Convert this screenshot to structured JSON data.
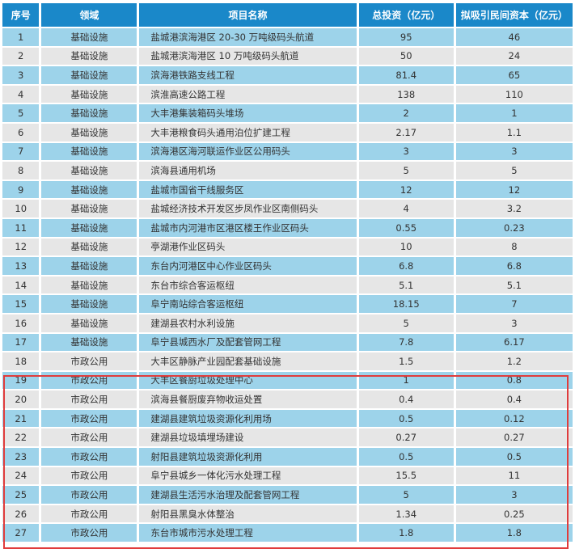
{
  "headers": [
    "序号",
    "领域",
    "项目名称",
    "总投资（亿元）",
    "拟吸引民间资本（亿元）"
  ],
  "rows": [
    {
      "no": "1",
      "field": "基础设施",
      "name": "盐城港滨海港区 20-30 万吨级码头航道",
      "total": "95",
      "private": "46"
    },
    {
      "no": "2",
      "field": "基础设施",
      "name": "盐城港滨海港区 10 万吨级码头航道",
      "total": "50",
      "private": "24"
    },
    {
      "no": "3",
      "field": "基础设施",
      "name": "滨海港铁路支线工程",
      "total": "81.4",
      "private": "65"
    },
    {
      "no": "4",
      "field": "基础设施",
      "name": "滨淮高速公路工程",
      "total": "138",
      "private": "110"
    },
    {
      "no": "5",
      "field": "基础设施",
      "name": "大丰港集装箱码头堆场",
      "total": "2",
      "private": "1"
    },
    {
      "no": "6",
      "field": "基础设施",
      "name": "大丰港粮食码头通用泊位扩建工程",
      "total": "2.17",
      "private": "1.1"
    },
    {
      "no": "7",
      "field": "基础设施",
      "name": "滨海港区海河联运作业区公用码头",
      "total": "3",
      "private": "3"
    },
    {
      "no": "8",
      "field": "基础设施",
      "name": "滨海县通用机场",
      "total": "5",
      "private": "5"
    },
    {
      "no": "9",
      "field": "基础设施",
      "name": "盐城市国省干线服务区",
      "total": "12",
      "private": "12"
    },
    {
      "no": "10",
      "field": "基础设施",
      "name": "盐城经济技术开发区步凤作业区南侧码头",
      "total": "4",
      "private": "3.2"
    },
    {
      "no": "11",
      "field": "基础设施",
      "name": "盐城市内河港市区港区楼王作业区码头",
      "total": "0.55",
      "private": "0.23"
    },
    {
      "no": "12",
      "field": "基础设施",
      "name": "亭湖港作业区码头",
      "total": "10",
      "private": "8"
    },
    {
      "no": "13",
      "field": "基础设施",
      "name": "东台内河港区中心作业区码头",
      "total": "6.8",
      "private": "6.8"
    },
    {
      "no": "14",
      "field": "基础设施",
      "name": "东台市综合客运枢纽",
      "total": "5.1",
      "private": "5.1"
    },
    {
      "no": "15",
      "field": "基础设施",
      "name": "阜宁南站综合客运枢纽",
      "total": "18.15",
      "private": "7"
    },
    {
      "no": "16",
      "field": "基础设施",
      "name": "建湖县农村水利设施",
      "total": "5",
      "private": "3"
    },
    {
      "no": "17",
      "field": "基础设施",
      "name": "阜宁县城西水厂及配套管网工程",
      "total": "7.8",
      "private": "6.17"
    },
    {
      "no": "18",
      "field": "市政公用",
      "name": "大丰区静脉产业园配套基础设施",
      "total": "1.5",
      "private": "1.2"
    },
    {
      "no": "19",
      "field": "市政公用",
      "name": "大丰区餐厨垃圾处理中心",
      "total": "1",
      "private": "0.8"
    },
    {
      "no": "20",
      "field": "市政公用",
      "name": "滨海县餐厨废弃物收运处置",
      "total": "0.4",
      "private": "0.4"
    },
    {
      "no": "21",
      "field": "市政公用",
      "name": "建湖县建筑垃圾资源化利用场",
      "total": "0.5",
      "private": "0.12"
    },
    {
      "no": "22",
      "field": "市政公用",
      "name": "建湖县垃圾填埋场建设",
      "total": "0.27",
      "private": "0.27"
    },
    {
      "no": "23",
      "field": "市政公用",
      "name": "射阳县建筑垃圾资源化利用",
      "total": "0.5",
      "private": "0.5"
    },
    {
      "no": "24",
      "field": "市政公用",
      "name": "阜宁县城乡一体化污水处理工程",
      "total": "15.5",
      "private": "11"
    },
    {
      "no": "25",
      "field": "市政公用",
      "name": "建湖县生活污水治理及配套管网工程",
      "total": "5",
      "private": "3"
    },
    {
      "no": "26",
      "field": "市政公用",
      "name": "射阳县黑臭水体整治",
      "total": "1.34",
      "private": "0.25"
    },
    {
      "no": "27",
      "field": "市政公用",
      "name": "东台市城市污水处理工程",
      "total": "1.8",
      "private": "1.8"
    }
  ],
  "colors": {
    "header_bg": "#1a88c9",
    "row_odd": "#9dd3ea",
    "row_even": "#e6e6e6",
    "highlight_border": "#e03c3c"
  }
}
